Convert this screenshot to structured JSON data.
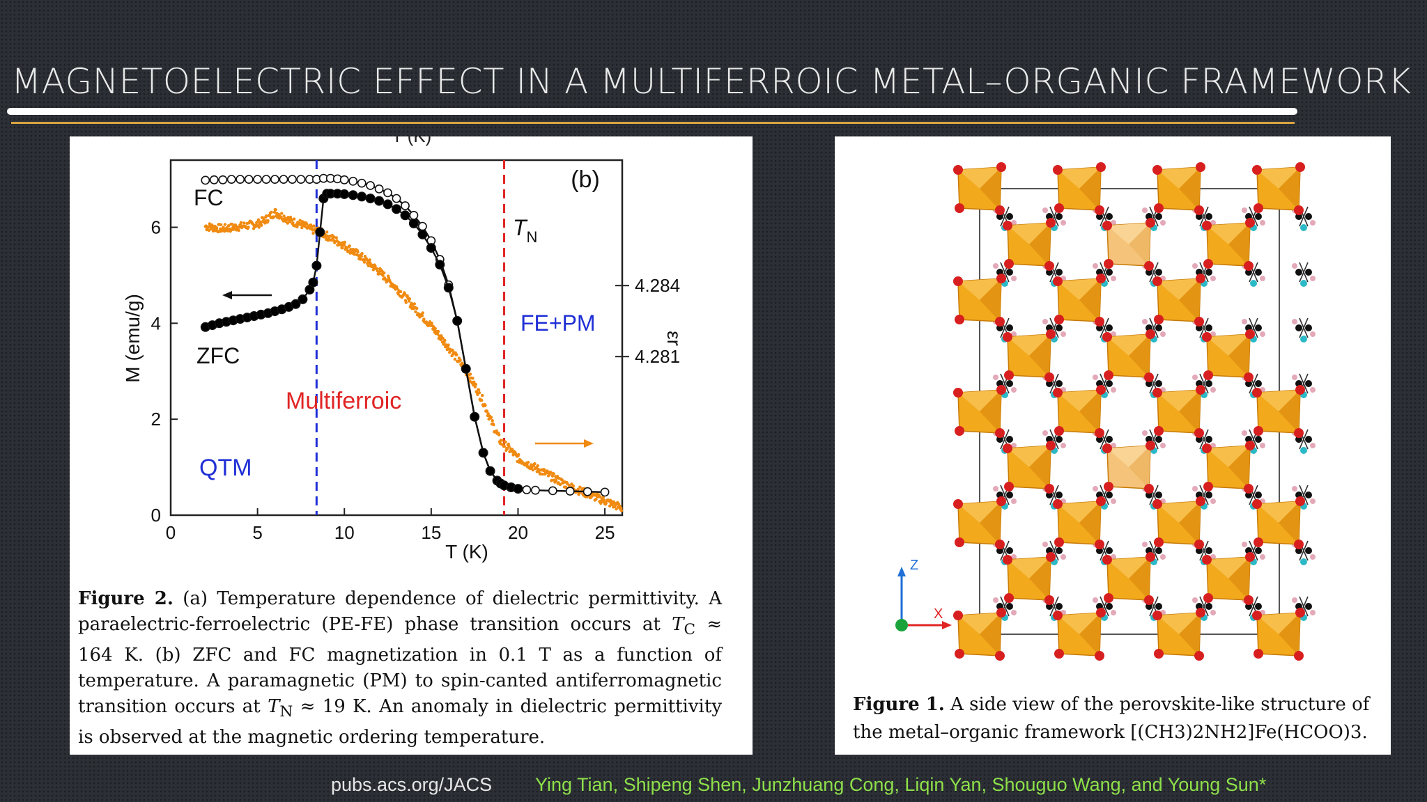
{
  "slide": {
    "title": "MAGNETOELECTRIC EFFECT IN A MULTIFERROIC METAL–ORGANIC FRAMEWORK",
    "footer_journal": "pubs.acs.org/JACS",
    "footer_authors": "Ying Tian, Shipeng Shen, Junzhuang Cong, Liqin Yan, Shouguo Wang, and Young Sun*"
  },
  "figure2": {
    "caption_label": "Figure 2.",
    "caption_text": "(a) Temperature dependence of dielectric permittivity. A paraelectric-ferroelectric (PE-FE) phase transition occurs at T_C ≈ 164 K. (b) ZFC and FC magnetization in 0.1 T as a function of temperature. A paramagnetic (PM) to spin-canted antiferromagnetic transition occurs at T_N ≈ 19 K. An anomaly in dielectric permittivity is observed at the magnetic ordering temperature.",
    "caption_pre_tc": "(a) Temperature dependence of dielectric permittivity. A paraelectric-ferroelectric (PE-FE) phase transition occurs at",
    "caption_tc_sym": "T",
    "caption_tc_sub": "C",
    "caption_tc_val": "≈ 164 K. (b) ZFC and FC magnetization in 0.1 T as a function of temperature. A paramagnetic (PM) to spin-canted antiferromagnetic transition occurs at",
    "caption_tn_sym": "T",
    "caption_tn_sub": "N",
    "caption_tn_val": "≈ 19 K. An anomaly in dielectric permittivity is observed at the magnetic ordering temperature.",
    "top_cut_label": "T (K)"
  },
  "figure1": {
    "caption_label": "Figure 1.",
    "caption_text": "A side view of the perovskite-like structure of the metal–organic framework [(CH3)2NH2]Fe(HCOO)3.",
    "caption_main": "A side view of the perovskite-like structure of the metal–organic framework",
    "formula": "[(CH3)2NH2]Fe(HCOO)3.",
    "axis_z": "Z",
    "axis_x": "X"
  },
  "colors": {
    "zfc": "#000000",
    "fc": "#ffffff",
    "permittivity": "#f08a10",
    "tq_line": "#1f2fd6",
    "tn_line": "#e02424",
    "footer_authors": "#8ee04a",
    "octahedron": "#f2a91c"
  },
  "chart_data": {
    "type": "scatter",
    "panel_label": "(b)",
    "xlabel": "T (K)",
    "ylabel": "M (emu/g)",
    "y2label": "εr",
    "xlim": [
      0,
      26
    ],
    "ylim": [
      0,
      7.4
    ],
    "y2lim": [
      4.2743,
      4.2893
    ],
    "xticks": [
      0,
      5,
      10,
      15,
      20,
      25
    ],
    "yticks": [
      0,
      2,
      4,
      6
    ],
    "y2ticks": [
      4.281,
      4.284
    ],
    "grid": false,
    "annotations": {
      "fc": "FC",
      "zfc": "ZFC",
      "tn_sym": "T",
      "tn_sub": "N",
      "fe_pm": "FE+PM",
      "multiferroic": "Multiferroic",
      "qtm": "QTM"
    },
    "vlines": [
      {
        "x": 8.4,
        "color": "#1f2fd6"
      },
      {
        "x": 19.2,
        "color": "#e02424"
      }
    ],
    "series": [
      {
        "name": "FC",
        "axis": "left",
        "marker": "open-circle",
        "x": [
          2.0,
          2.5,
          3.0,
          3.5,
          4.0,
          4.5,
          5.0,
          5.5,
          6.0,
          6.5,
          7.0,
          7.5,
          8.0,
          8.4,
          8.8,
          9.2,
          9.6,
          10.0,
          10.5,
          11.0,
          11.5,
          12.0,
          12.5,
          13.0,
          13.5,
          14.0,
          14.5,
          15.0,
          15.5,
          16.0,
          16.5,
          17.0,
          17.5,
          18.0,
          18.4,
          18.8,
          19.0,
          19.2,
          19.6,
          20.0,
          20.5,
          21.0,
          22.0,
          23.0,
          24.0,
          25.0
        ],
        "y": [
          6.98,
          6.99,
          6.99,
          7.0,
          7.0,
          7.0,
          7.0,
          7.0,
          7.0,
          7.0,
          7.0,
          7.0,
          7.0,
          7.0,
          7.02,
          7.02,
          7.01,
          6.99,
          6.96,
          6.92,
          6.87,
          6.8,
          6.72,
          6.6,
          6.45,
          6.25,
          6.02,
          5.72,
          5.33,
          4.8,
          4.05,
          3.05,
          2.05,
          1.3,
          0.92,
          0.72,
          0.66,
          0.62,
          0.58,
          0.55,
          0.53,
          0.52,
          0.51,
          0.5,
          0.49,
          0.48
        ]
      },
      {
        "name": "ZFC",
        "axis": "left",
        "marker": "filled-circle",
        "x": [
          2.0,
          2.4,
          2.8,
          3.2,
          3.6,
          4.0,
          4.4,
          4.8,
          5.2,
          5.6,
          6.0,
          6.4,
          6.8,
          7.2,
          7.6,
          8.0,
          8.2,
          8.4,
          8.6,
          8.8,
          9.0,
          9.2,
          9.6,
          10.0,
          10.5,
          11.0,
          11.5,
          12.0,
          12.5,
          13.0,
          13.5,
          14.0,
          14.5,
          15.0,
          15.5,
          16.0,
          16.5,
          17.0,
          17.5,
          18.0,
          18.4,
          18.8,
          19.0,
          19.2,
          19.6,
          20.0
        ],
        "y": [
          3.92,
          3.96,
          4.0,
          4.03,
          4.06,
          4.09,
          4.12,
          4.15,
          4.18,
          4.21,
          4.25,
          4.29,
          4.34,
          4.4,
          4.5,
          4.7,
          4.85,
          5.2,
          5.9,
          6.6,
          6.7,
          6.7,
          6.7,
          6.69,
          6.67,
          6.64,
          6.6,
          6.55,
          6.48,
          6.38,
          6.25,
          6.08,
          5.85,
          5.57,
          5.22,
          4.74,
          4.05,
          3.05,
          2.05,
          1.3,
          0.92,
          0.72,
          0.66,
          0.62,
          0.58,
          0.55
        ]
      },
      {
        "name": "εr",
        "axis": "right",
        "marker": "dot",
        "x": [
          2.0,
          3.0,
          4.0,
          5.0,
          5.5,
          6.0,
          6.5,
          7.0,
          7.5,
          8.0,
          8.5,
          9.0,
          10.0,
          11.0,
          12.0,
          13.0,
          14.0,
          15.0,
          16.0,
          17.0,
          17.5,
          18.0,
          18.5,
          19.0,
          19.5,
          20.0,
          21.0,
          22.0,
          23.0,
          24.0,
          25.0,
          26.0
        ],
        "y": [
          4.2865,
          4.2864,
          4.2865,
          4.2866,
          4.2868,
          4.2871,
          4.2869,
          4.2867,
          4.2866,
          4.2864,
          4.2863,
          4.2861,
          4.2857,
          4.2852,
          4.2846,
          4.2839,
          4.2831,
          4.2823,
          4.2814,
          4.2804,
          4.2798,
          4.2791,
          4.2782,
          4.2774,
          4.2771,
          4.2767,
          4.2763,
          4.2759,
          4.2755,
          4.2752,
          4.2749,
          4.2746
        ]
      }
    ]
  }
}
